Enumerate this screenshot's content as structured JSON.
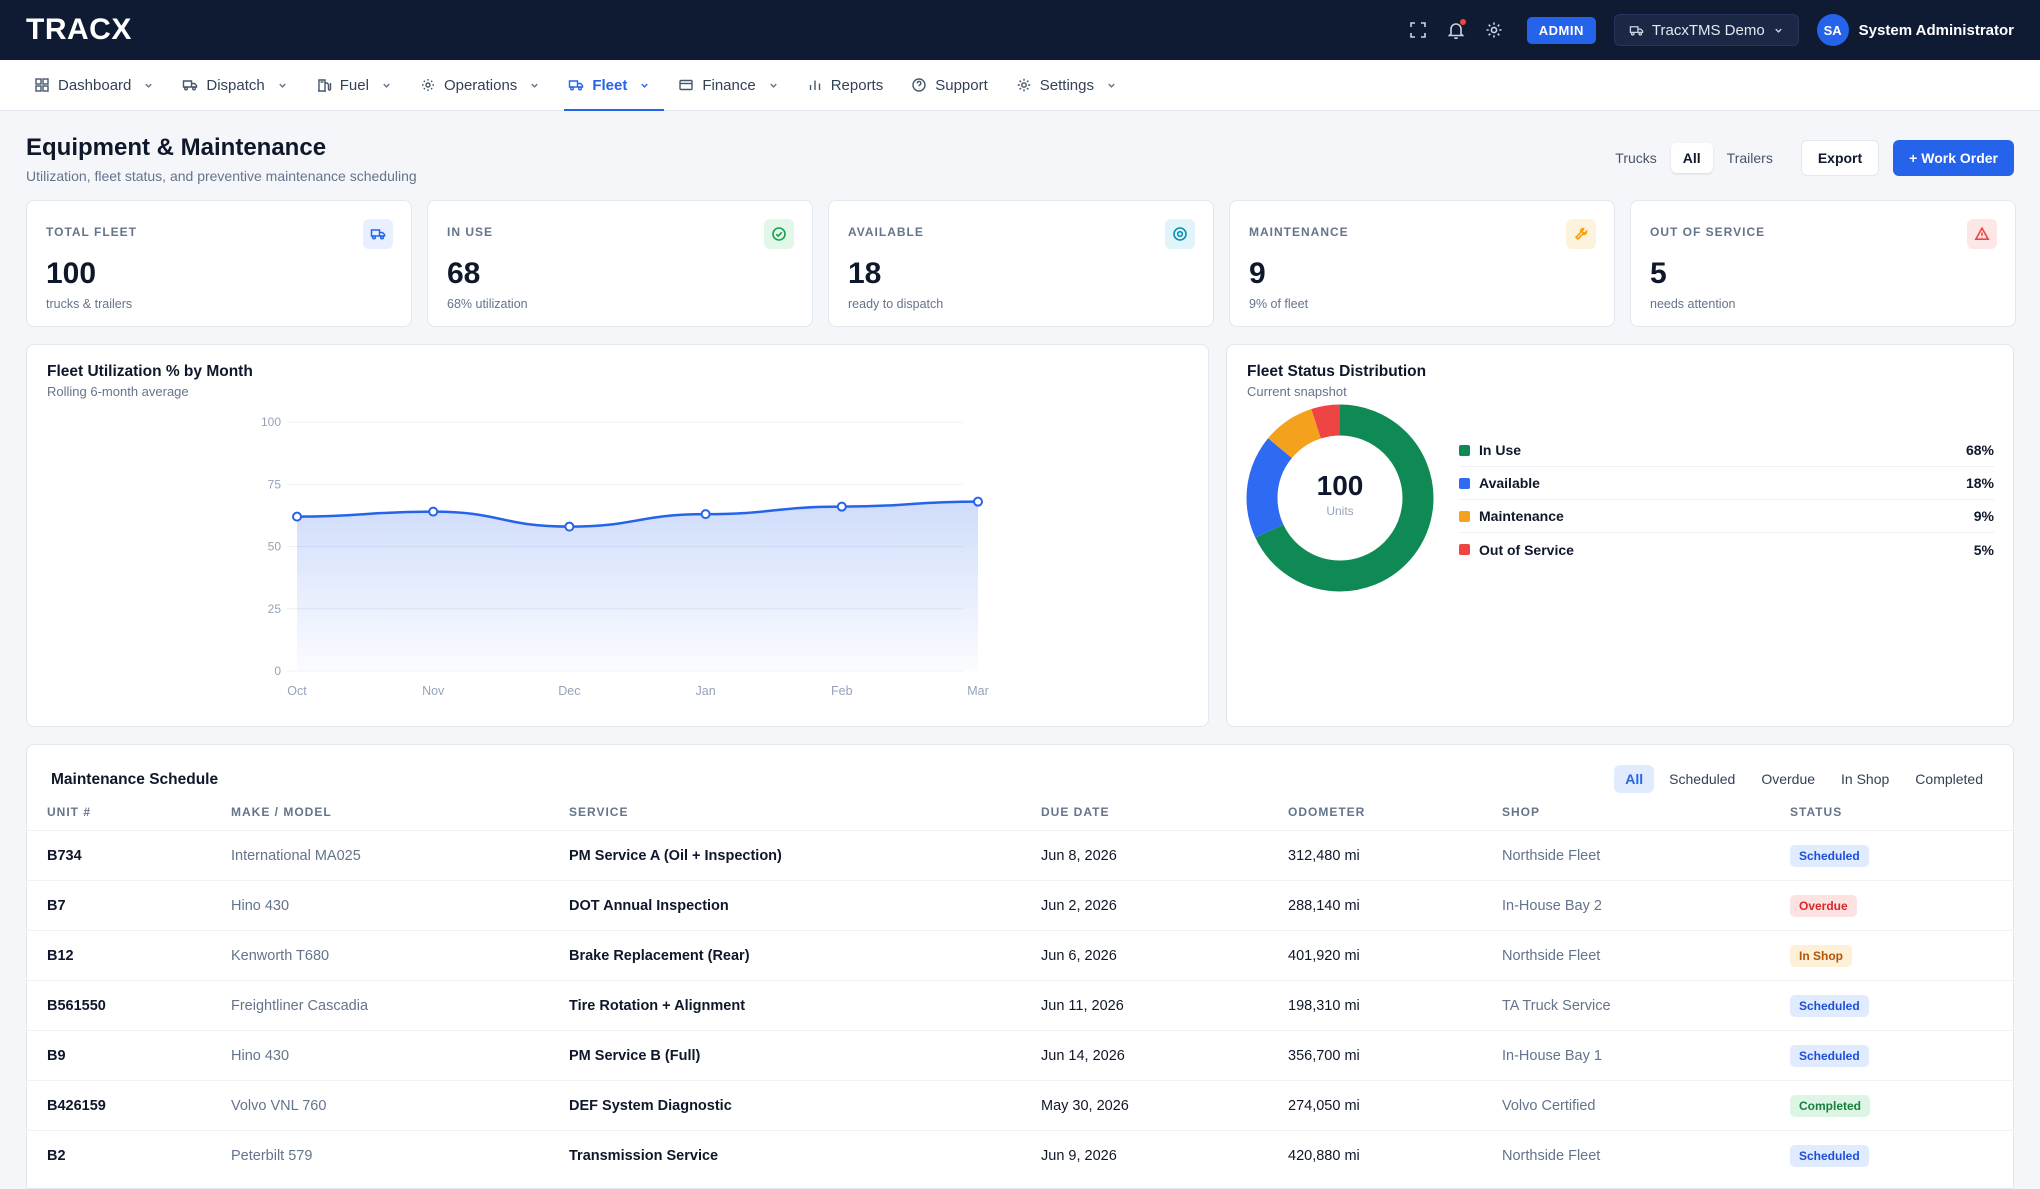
{
  "app": {
    "logo": "TRACX"
  },
  "topbar": {
    "admin_badge": "ADMIN",
    "tenant": "TracxTMS Demo",
    "user_initials": "SA",
    "user_name": "System Administrator",
    "icons": [
      "fullscreen-icon",
      "bell-icon",
      "gear-icon"
    ]
  },
  "nav": [
    {
      "label": "Dashboard",
      "icon": "grid-icon",
      "dropdown": true
    },
    {
      "label": "Dispatch",
      "icon": "truck-icon",
      "dropdown": true
    },
    {
      "label": "Fuel",
      "icon": "fuel-icon",
      "dropdown": true
    },
    {
      "label": "Operations",
      "icon": "gear-icon",
      "dropdown": true
    },
    {
      "label": "Fleet",
      "icon": "truck-icon",
      "dropdown": true,
      "active": true
    },
    {
      "label": "Finance",
      "icon": "card-icon",
      "dropdown": true
    },
    {
      "label": "Reports",
      "icon": "bar-chart-icon",
      "dropdown": false
    },
    {
      "label": "Support",
      "icon": "help-icon",
      "dropdown": false
    },
    {
      "label": "Settings",
      "icon": "gear-icon",
      "dropdown": true
    }
  ],
  "header": {
    "title": "Equipment & Maintenance",
    "subtitle": "Utilization, fleet status, and preventive maintenance scheduling",
    "segments": [
      "Trucks",
      "All",
      "Trailers"
    ],
    "active_segment": "All",
    "export_label": "Export",
    "work_order_label": "+ Work Order"
  },
  "kpis": [
    {
      "label": "TOTAL FLEET",
      "value": "100",
      "note": "trucks & trailers",
      "icon": "truck-icon",
      "color": "#2563eb",
      "bg": "#e8efff"
    },
    {
      "label": "IN USE",
      "value": "68",
      "note": "68% utilization",
      "icon": "check-circle-icon",
      "color": "#16a34a",
      "bg": "#e3f6ea"
    },
    {
      "label": "AVAILABLE",
      "value": "18",
      "note": "ready to dispatch",
      "icon": "target-icon",
      "color": "#0891b2",
      "bg": "#e0f4f9"
    },
    {
      "label": "MAINTENANCE",
      "value": "9",
      "note": "9% of fleet",
      "icon": "wrench-icon",
      "color": "#f59e0b",
      "bg": "#fdf2dc"
    },
    {
      "label": "OUT OF SERVICE",
      "value": "5",
      "note": "needs attention",
      "icon": "warning-icon",
      "color": "#ef4444",
      "bg": "#fde6e6"
    }
  ],
  "utilization_panel": {
    "title": "Fleet Utilization % by Month",
    "subtitle": "Rolling 6-month average"
  },
  "status_panel": {
    "title": "Fleet Status Distribution",
    "subtitle": "Current snapshot",
    "center_value": "100",
    "center_label": "Units"
  },
  "chart_data": [
    {
      "type": "area",
      "title": "Fleet Utilization % by Month",
      "x": [
        "Oct",
        "Nov",
        "Dec",
        "Jan",
        "Feb",
        "Mar"
      ],
      "values": [
        62,
        64,
        58,
        63,
        66,
        68
      ],
      "ylim": [
        0,
        100
      ],
      "yticks": [
        0,
        25,
        50,
        75,
        100
      ],
      "color": "#2563eb",
      "grid": true
    },
    {
      "type": "pie",
      "title": "Fleet Status Distribution",
      "categories": [
        "In Use",
        "Available",
        "Maintenance",
        "Out of Service"
      ],
      "values": [
        68,
        18,
        9,
        5
      ],
      "labels": [
        "68%",
        "18%",
        "9%",
        "5%"
      ],
      "colors": [
        "#0f8a55",
        "#2f6bf2",
        "#f4a11d",
        "#ef4444"
      ]
    }
  ],
  "maintenance": {
    "title": "Maintenance Schedule",
    "filters": [
      "All",
      "Scheduled",
      "Overdue",
      "In Shop",
      "Completed"
    ],
    "active_filter": "All",
    "columns": [
      "UNIT #",
      "MAKE / MODEL",
      "SERVICE",
      "DUE DATE",
      "ODOMETER",
      "SHOP",
      "STATUS"
    ],
    "rows": [
      {
        "unit": "B734",
        "model": "International MA025",
        "service": "PM Service A (Oil + Inspection)",
        "due": "Jun 8, 2026",
        "odometer": "312,480 mi",
        "shop": "Northside Fleet",
        "status": "Scheduled",
        "status_class": "st-scheduled"
      },
      {
        "unit": "B7",
        "model": "Hino 430",
        "service": "DOT Annual Inspection",
        "due": "Jun 2, 2026",
        "odometer": "288,140 mi",
        "shop": "In-House Bay 2",
        "status": "Overdue",
        "status_class": "st-overdue"
      },
      {
        "unit": "B12",
        "model": "Kenworth T680",
        "service": "Brake Replacement (Rear)",
        "due": "Jun 6, 2026",
        "odometer": "401,920 mi",
        "shop": "Northside Fleet",
        "status": "In Shop",
        "status_class": "st-inshop"
      },
      {
        "unit": "B561550",
        "model": "Freightliner Cascadia",
        "service": "Tire Rotation + Alignment",
        "due": "Jun 11, 2026",
        "odometer": "198,310 mi",
        "shop": "TA Truck Service",
        "status": "Scheduled",
        "status_class": "st-scheduled"
      },
      {
        "unit": "B9",
        "model": "Hino 430",
        "service": "PM Service B (Full)",
        "due": "Jun 14, 2026",
        "odometer": "356,700 mi",
        "shop": "In-House Bay 1",
        "status": "Scheduled",
        "status_class": "st-scheduled"
      },
      {
        "unit": "B426159",
        "model": "Volvo VNL 760",
        "service": "DEF System Diagnostic",
        "due": "May 30, 2026",
        "odometer": "274,050 mi",
        "shop": "Volvo Certified",
        "status": "Completed",
        "status_class": "st-completed"
      },
      {
        "unit": "B2",
        "model": "Peterbilt 579",
        "service": "Transmission Service",
        "due": "Jun 9, 2026",
        "odometer": "420,880 mi",
        "shop": "Northside Fleet",
        "status": "Scheduled",
        "status_class": "st-scheduled"
      }
    ]
  }
}
